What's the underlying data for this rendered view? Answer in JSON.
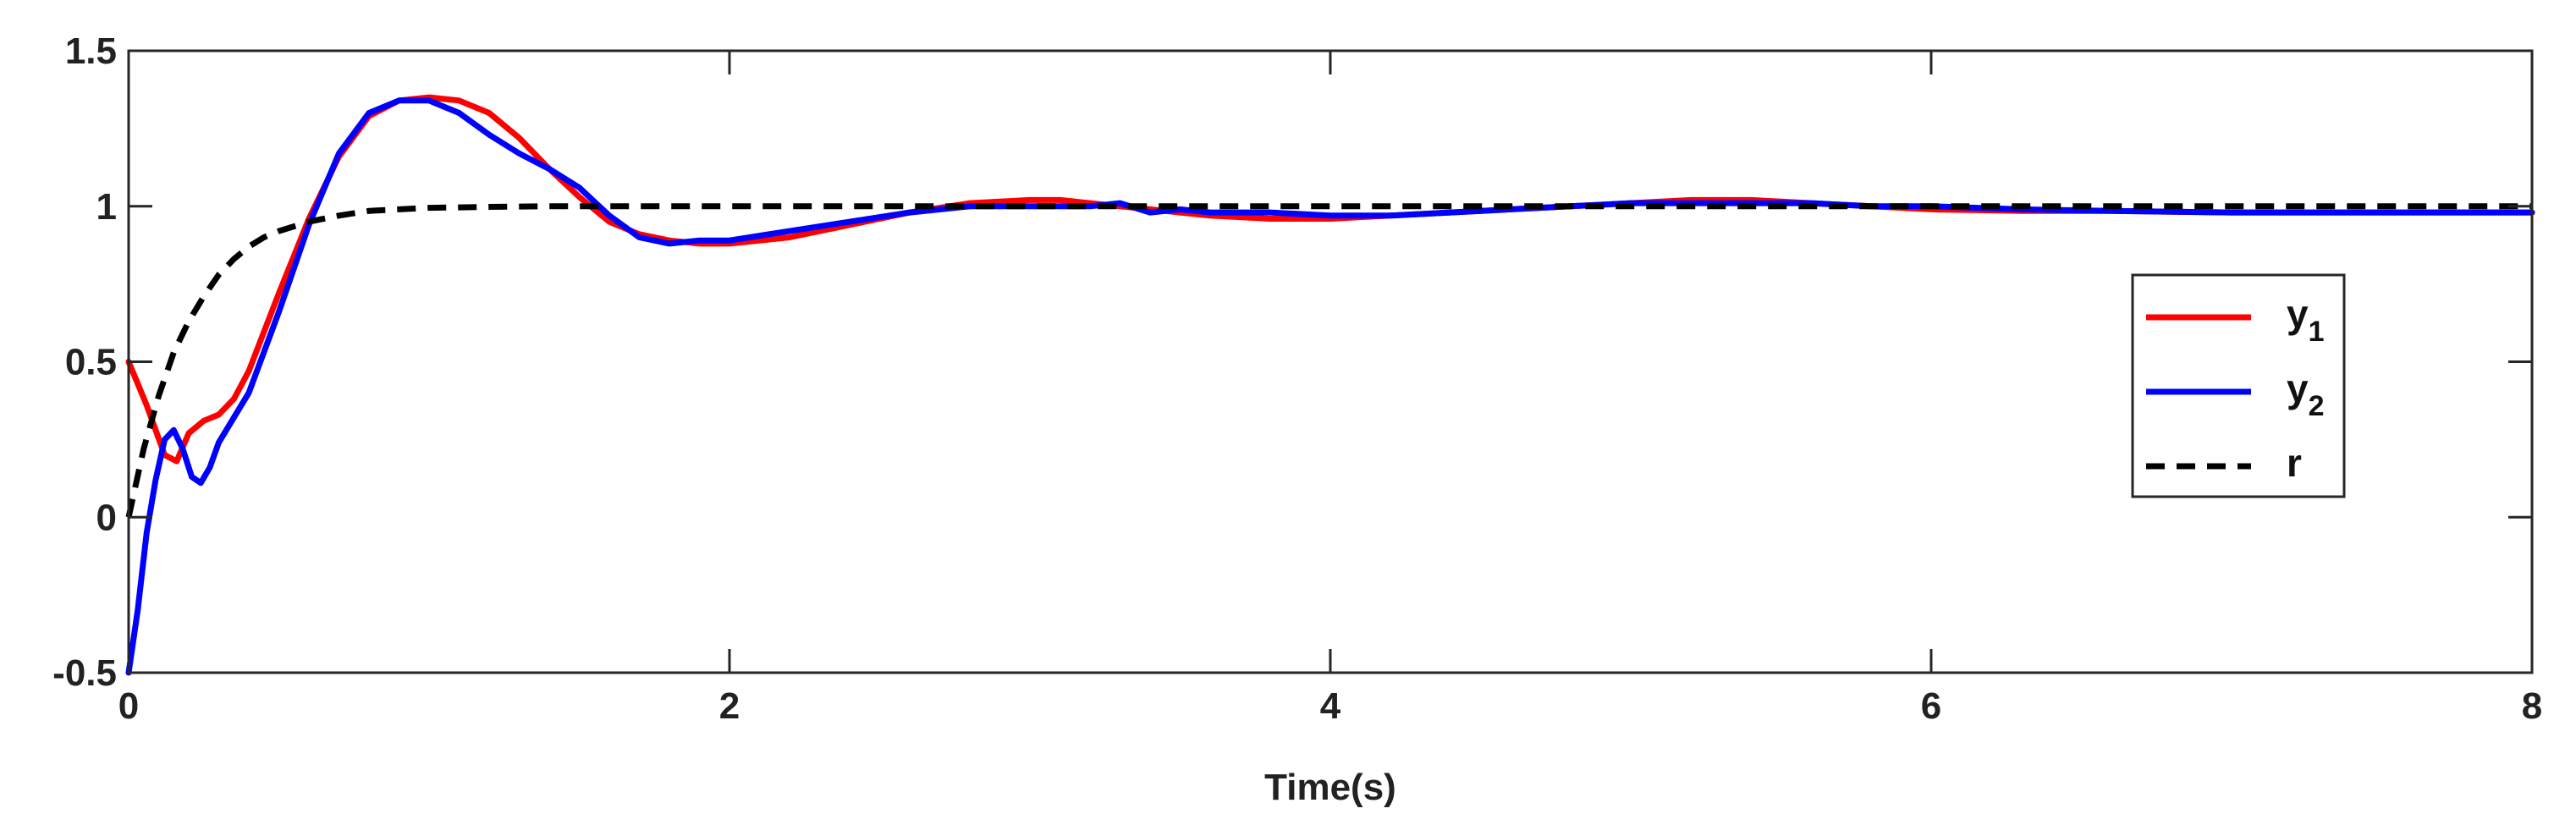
{
  "chart_data": {
    "type": "line",
    "title": "",
    "xlabel": "Time(s)",
    "ylabel": "",
    "xlim": [
      0,
      8
    ],
    "ylim": [
      -0.5,
      1.5
    ],
    "xticks": [
      0,
      2,
      4,
      6,
      8
    ],
    "yticks": [
      -0.5,
      0,
      0.5,
      1,
      1.5
    ],
    "xtick_labels": [
      "0",
      "2",
      "4",
      "6",
      "8"
    ],
    "ytick_labels": [
      "-0.5",
      "0",
      "0.5",
      "1",
      "1.5"
    ],
    "grid": false,
    "legend_position": "right",
    "series": [
      {
        "name": "y",
        "subscript": "1",
        "color": "#ff0000",
        "style": "solid",
        "x": [
          0,
          0.06,
          0.12,
          0.16,
          0.2,
          0.25,
          0.3,
          0.35,
          0.4,
          0.5,
          0.6,
          0.7,
          0.8,
          0.9,
          1.0,
          1.1,
          1.2,
          1.3,
          1.4,
          1.5,
          1.6,
          1.7,
          1.8,
          1.9,
          2.0,
          2.2,
          2.4,
          2.6,
          2.8,
          3.0,
          3.1,
          3.2,
          3.4,
          3.6,
          3.8,
          4.0,
          4.2,
          4.4,
          4.6,
          4.8,
          5.0,
          5.2,
          5.4,
          5.6,
          5.8,
          6.0,
          6.3,
          6.6,
          7.0,
          7.5,
          8.0
        ],
        "y": [
          0.5,
          0.36,
          0.2,
          0.18,
          0.27,
          0.31,
          0.33,
          0.38,
          0.47,
          0.72,
          0.96,
          1.16,
          1.29,
          1.34,
          1.35,
          1.34,
          1.3,
          1.22,
          1.12,
          1.03,
          0.95,
          0.91,
          0.89,
          0.88,
          0.88,
          0.9,
          0.94,
          0.98,
          1.01,
          1.02,
          1.02,
          1.01,
          0.99,
          0.97,
          0.96,
          0.96,
          0.97,
          0.98,
          0.99,
          1.0,
          1.01,
          1.02,
          1.02,
          1.01,
          1.0,
          0.99,
          0.985,
          0.985,
          0.98,
          0.98,
          0.98
        ]
      },
      {
        "name": "y",
        "subscript": "2",
        "color": "#0000ff",
        "style": "solid",
        "x": [
          0,
          0.03,
          0.06,
          0.09,
          0.12,
          0.15,
          0.18,
          0.21,
          0.24,
          0.27,
          0.3,
          0.35,
          0.4,
          0.5,
          0.6,
          0.7,
          0.8,
          0.9,
          1.0,
          1.1,
          1.2,
          1.3,
          1.4,
          1.5,
          1.6,
          1.7,
          1.8,
          1.9,
          2.0,
          2.2,
          2.4,
          2.6,
          2.8,
          3.0,
          3.2,
          3.3,
          3.4,
          3.5,
          3.6,
          3.8,
          4.0,
          4.2,
          4.4,
          4.6,
          4.8,
          5.0,
          5.2,
          5.4,
          5.6,
          5.8,
          6.0,
          6.3,
          6.6,
          7.0,
          7.5,
          8.0
        ],
        "y": [
          -0.5,
          -0.3,
          -0.05,
          0.12,
          0.25,
          0.28,
          0.22,
          0.13,
          0.11,
          0.16,
          0.24,
          0.32,
          0.4,
          0.66,
          0.94,
          1.17,
          1.3,
          1.34,
          1.34,
          1.3,
          1.23,
          1.17,
          1.12,
          1.06,
          0.97,
          0.9,
          0.88,
          0.89,
          0.89,
          0.92,
          0.95,
          0.98,
          1.0,
          1.0,
          1.0,
          1.01,
          0.98,
          0.99,
          0.98,
          0.98,
          0.97,
          0.97,
          0.98,
          0.99,
          1.0,
          1.01,
          1.01,
          1.01,
          1.01,
          1.0,
          1.0,
          0.99,
          0.985,
          0.98,
          0.98,
          0.98
        ]
      },
      {
        "name": "r",
        "subscript": "",
        "color": "#000000",
        "style": "dashed",
        "x": [
          0,
          0.05,
          0.1,
          0.15,
          0.2,
          0.25,
          0.3,
          0.35,
          0.4,
          0.45,
          0.5,
          0.6,
          0.7,
          0.8,
          0.9,
          1.0,
          1.2,
          1.4,
          1.6,
          2.0,
          3.0,
          4.0,
          5.0,
          6.0,
          7.0,
          8.0
        ],
        "y": [
          0,
          0.22,
          0.39,
          0.53,
          0.63,
          0.71,
          0.78,
          0.83,
          0.87,
          0.9,
          0.92,
          0.95,
          0.97,
          0.985,
          0.99,
          0.995,
          0.998,
          1.0,
          1.0,
          1.0,
          1.0,
          1.0,
          1.0,
          1.0,
          1.0,
          1.0
        ]
      }
    ]
  }
}
